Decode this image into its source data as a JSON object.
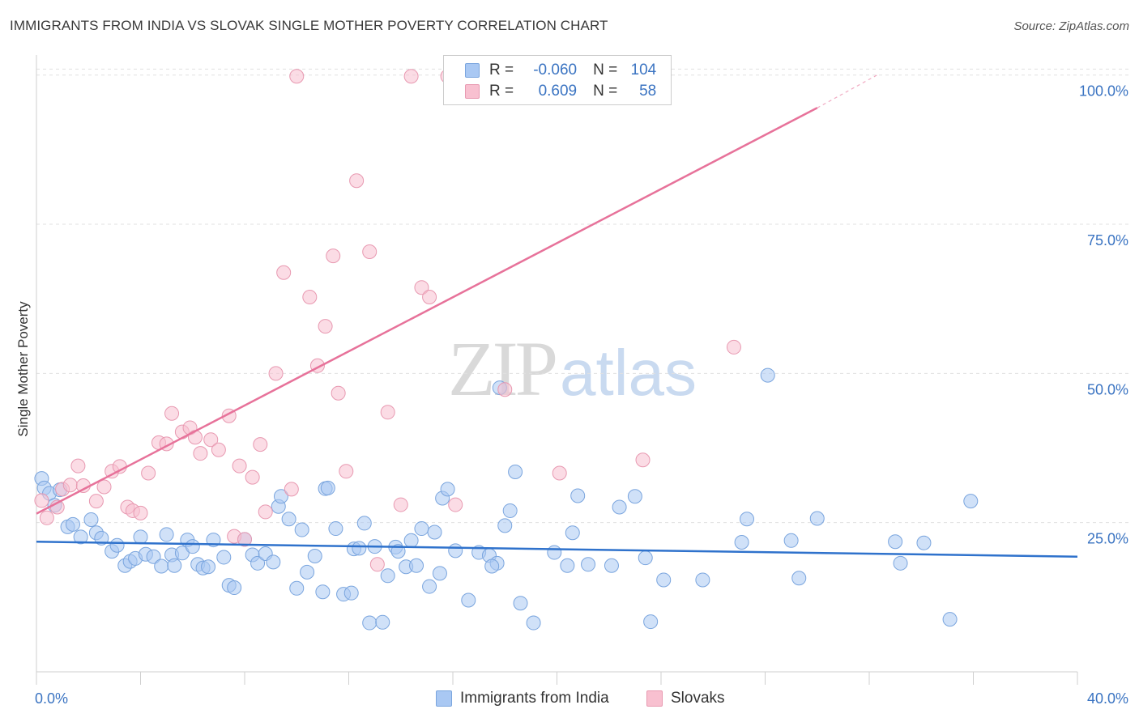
{
  "header": {
    "title": "IMMIGRANTS FROM INDIA VS SLOVAK SINGLE MOTHER POVERTY CORRELATION CHART",
    "source": "Source: ZipAtlas.com"
  },
  "watermark": {
    "zip": "ZIP",
    "atlas": "atlas"
  },
  "legend": {
    "rows": [
      {
        "r_label": "R =",
        "r_value": "-0.060",
        "n_label": "N =",
        "n_value": "104",
        "color": "#a9c8f3",
        "border": "#7aa5de"
      },
      {
        "r_label": "R =",
        "r_value": "0.609",
        "n_label": "N =",
        "n_value": "58",
        "color": "#f8c0d0",
        "border": "#e899b1"
      }
    ]
  },
  "bottom_legend": [
    {
      "label": "Immigrants from India",
      "color": "#a9c8f3",
      "border": "#7aa5de"
    },
    {
      "label": "Slovaks",
      "color": "#f8c0d0",
      "border": "#e899b1"
    }
  ],
  "chart_data": {
    "type": "scatter",
    "title": "IMMIGRANTS FROM INDIA VS SLOVAK SINGLE MOTHER POVERTY CORRELATION CHART",
    "xlabel": "",
    "ylabel": "Single Mother Poverty",
    "xlim": [
      0,
      40
    ],
    "ylim": [
      0,
      102
    ],
    "x_tick_labels": [
      {
        "value": 0,
        "label": "0.0%"
      },
      {
        "value": 40,
        "label": "40.0%"
      }
    ],
    "y_tick_labels": [
      {
        "value": 25,
        "label": "25.0%"
      },
      {
        "value": 50,
        "label": "50.0%"
      },
      {
        "value": 75,
        "label": "75.0%"
      },
      {
        "value": 100,
        "label": "100.0%"
      }
    ],
    "grid": true,
    "legend_position": "top-center",
    "series": [
      {
        "name": "Immigrants from India",
        "color": "#a9c8f3",
        "stroke": "#7aa5de",
        "trend_color": "#2f72cc",
        "trend": {
          "x": [
            0,
            40
          ],
          "y": [
            21.8,
            19.3
          ]
        },
        "points": [
          [
            0.2,
            32.4
          ],
          [
            0.3,
            30.8
          ],
          [
            0.5,
            29.9
          ],
          [
            0.7,
            27.9
          ],
          [
            0.9,
            30.5
          ],
          [
            1.2,
            24.3
          ],
          [
            1.4,
            24.7
          ],
          [
            1.7,
            22.6
          ],
          [
            2.1,
            25.5
          ],
          [
            2.3,
            23.3
          ],
          [
            2.5,
            22.4
          ],
          [
            2.9,
            20.2
          ],
          [
            3.1,
            21.2
          ],
          [
            3.4,
            17.8
          ],
          [
            3.6,
            18.5
          ],
          [
            3.8,
            19.0
          ],
          [
            4.0,
            22.6
          ],
          [
            4.2,
            19.7
          ],
          [
            4.5,
            19.3
          ],
          [
            4.8,
            17.7
          ],
          [
            5.0,
            23.0
          ],
          [
            5.2,
            19.6
          ],
          [
            5.3,
            17.8
          ],
          [
            5.6,
            19.9
          ],
          [
            5.8,
            22.1
          ],
          [
            6.0,
            21.0
          ],
          [
            6.2,
            18.0
          ],
          [
            6.4,
            17.4
          ],
          [
            6.6,
            17.6
          ],
          [
            6.8,
            22.1
          ],
          [
            7.2,
            19.2
          ],
          [
            7.4,
            14.5
          ],
          [
            7.6,
            14.1
          ],
          [
            8.0,
            22.2
          ],
          [
            8.3,
            19.6
          ],
          [
            8.5,
            18.2
          ],
          [
            8.8,
            19.8
          ],
          [
            9.1,
            18.4
          ],
          [
            9.3,
            27.7
          ],
          [
            9.4,
            29.4
          ],
          [
            9.7,
            25.6
          ],
          [
            10.0,
            14.0
          ],
          [
            10.2,
            23.8
          ],
          [
            10.4,
            16.7
          ],
          [
            10.7,
            19.4
          ],
          [
            11.0,
            13.4
          ],
          [
            11.1,
            30.7
          ],
          [
            11.2,
            30.8
          ],
          [
            11.5,
            24.0
          ],
          [
            11.8,
            13.0
          ],
          [
            12.1,
            13.2
          ],
          [
            12.2,
            20.6
          ],
          [
            12.4,
            20.7
          ],
          [
            12.6,
            24.9
          ],
          [
            12.8,
            8.2
          ],
          [
            13.0,
            21.0
          ],
          [
            13.3,
            8.3
          ],
          [
            13.5,
            16.1
          ],
          [
            13.8,
            20.9
          ],
          [
            13.9,
            20.2
          ],
          [
            14.2,
            17.6
          ],
          [
            14.4,
            22.0
          ],
          [
            14.6,
            17.8
          ],
          [
            14.8,
            24.0
          ],
          [
            15.1,
            14.3
          ],
          [
            15.5,
            16.5
          ],
          [
            15.3,
            23.4
          ],
          [
            15.6,
            29.1
          ],
          [
            15.8,
            30.6
          ],
          [
            16.1,
            20.3
          ],
          [
            16.6,
            12.0
          ],
          [
            17.0,
            20.0
          ],
          [
            17.4,
            19.5
          ],
          [
            17.7,
            18.2
          ],
          [
            17.8,
            47.6
          ],
          [
            17.5,
            17.7
          ],
          [
            18.0,
            24.5
          ],
          [
            18.2,
            27.0
          ],
          [
            18.4,
            33.5
          ],
          [
            18.6,
            11.5
          ],
          [
            19.1,
            8.2
          ],
          [
            19.9,
            20.0
          ],
          [
            20.4,
            17.8
          ],
          [
            20.6,
            23.3
          ],
          [
            20.8,
            29.5
          ],
          [
            21.2,
            18.0
          ],
          [
            22.1,
            17.8
          ],
          [
            22.4,
            27.6
          ],
          [
            23.0,
            29.4
          ],
          [
            23.4,
            19.1
          ],
          [
            23.6,
            8.4
          ],
          [
            24.1,
            15.4
          ],
          [
            25.6,
            15.4
          ],
          [
            27.1,
            21.7
          ],
          [
            27.3,
            25.6
          ],
          [
            28.1,
            49.7
          ],
          [
            29.0,
            22.0
          ],
          [
            29.3,
            15.7
          ],
          [
            30.0,
            25.7
          ],
          [
            33.0,
            21.8
          ],
          [
            33.2,
            18.2
          ],
          [
            34.1,
            21.6
          ],
          [
            35.1,
            8.8
          ],
          [
            35.9,
            28.6
          ]
        ]
      },
      {
        "name": "Slovaks",
        "color": "#f8c0d0",
        "stroke": "#e899b1",
        "trend_color": "#e7729a",
        "trend": {
          "x": [
            0,
            30
          ],
          "y": [
            26.5,
            94.5
          ]
        },
        "trend_extension": {
          "x": [
            30,
            32.3
          ],
          "y": [
            94.5,
            100.0
          ]
        },
        "points": [
          [
            0.2,
            28.7
          ],
          [
            0.4,
            25.8
          ],
          [
            0.8,
            27.6
          ],
          [
            1.0,
            30.6
          ],
          [
            1.3,
            31.3
          ],
          [
            1.6,
            34.5
          ],
          [
            1.8,
            31.2
          ],
          [
            2.3,
            28.6
          ],
          [
            2.6,
            31.0
          ],
          [
            2.9,
            33.6
          ],
          [
            3.2,
            34.4
          ],
          [
            3.5,
            27.6
          ],
          [
            3.7,
            27.0
          ],
          [
            4.0,
            26.6
          ],
          [
            4.3,
            33.3
          ],
          [
            4.7,
            38.4
          ],
          [
            5.0,
            38.2
          ],
          [
            5.2,
            43.3
          ],
          [
            5.6,
            40.2
          ],
          [
            5.9,
            40.9
          ],
          [
            6.1,
            39.3
          ],
          [
            6.3,
            36.6
          ],
          [
            6.7,
            38.9
          ],
          [
            7.0,
            37.2
          ],
          [
            7.4,
            42.9
          ],
          [
            7.6,
            22.7
          ],
          [
            7.8,
            34.5
          ],
          [
            8.0,
            22.2
          ],
          [
            8.3,
            32.6
          ],
          [
            8.6,
            38.1
          ],
          [
            8.8,
            26.8
          ],
          [
            9.2,
            50.0
          ],
          [
            9.5,
            66.9
          ],
          [
            9.8,
            30.6
          ],
          [
            10.0,
            99.8
          ],
          [
            10.5,
            62.8
          ],
          [
            10.8,
            51.3
          ],
          [
            11.1,
            57.9
          ],
          [
            11.4,
            69.7
          ],
          [
            11.6,
            46.7
          ],
          [
            11.9,
            33.6
          ],
          [
            12.3,
            82.3
          ],
          [
            12.8,
            70.4
          ],
          [
            13.1,
            18.0
          ],
          [
            13.5,
            43.5
          ],
          [
            14.0,
            28.0
          ],
          [
            14.4,
            99.8
          ],
          [
            14.8,
            64.4
          ],
          [
            15.1,
            62.8
          ],
          [
            15.8,
            99.8
          ],
          [
            16.1,
            28.0
          ],
          [
            16.7,
            99.8
          ],
          [
            17.2,
            100.0
          ],
          [
            18.0,
            47.3
          ],
          [
            20.1,
            33.3
          ],
          [
            21.8,
            99.8
          ],
          [
            23.3,
            35.5
          ],
          [
            26.8,
            54.4
          ]
        ]
      }
    ]
  }
}
